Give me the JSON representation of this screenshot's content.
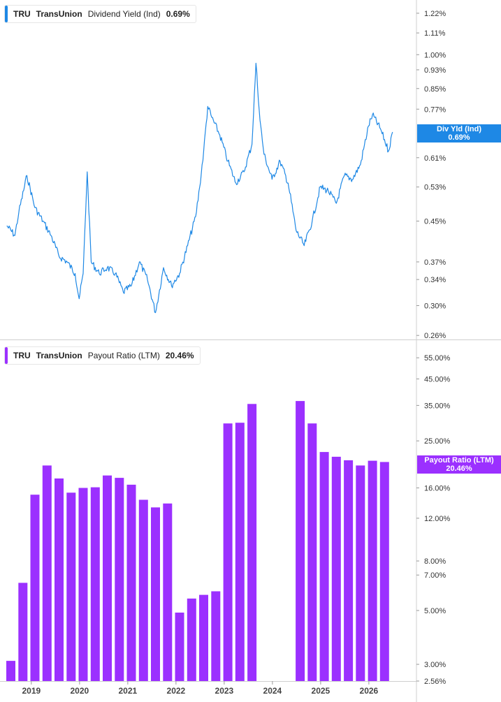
{
  "panel_top": {
    "legend": {
      "ticker": "TRU",
      "company": "TransUnion",
      "metric": "Dividend Yield (Ind)",
      "value": "0.69%"
    },
    "flag": {
      "label": "Div Yld (Ind)",
      "value": "0.69%"
    },
    "color": "#1e88e5"
  },
  "panel_bottom": {
    "legend": {
      "ticker": "TRU",
      "company": "TransUnion",
      "metric": "Payout Ratio (LTM)",
      "value": "20.46%"
    },
    "flag": {
      "label": "Payout Ratio (LTM)",
      "value": "20.46%"
    },
    "color": "#9b30ff"
  },
  "x_axis": {
    "labels": [
      "2019",
      "2020",
      "2021",
      "2022",
      "2023",
      "2024",
      "2025",
      "2026"
    ]
  },
  "chart_data": [
    {
      "type": "line",
      "series": [
        {
          "name": "Dividend Yield (Ind)",
          "unit": "%"
        }
      ],
      "yscale": "log",
      "ylim": [
        0.26,
        1.3
      ],
      "yticks": [
        "1.22%",
        "1.11%",
        "1.00%",
        "0.93%",
        "0.85%",
        "0.77%",
        "0.61%",
        "0.53%",
        "0.45%",
        "0.37%",
        "0.34%",
        "0.30%",
        "0.26%"
      ],
      "x": [
        "2018-07",
        "2018-09",
        "2018-10",
        "2018-12",
        "2019-02",
        "2019-04",
        "2019-06",
        "2019-08",
        "2019-10",
        "2019-12",
        "2020-01",
        "2020-02",
        "2020-03",
        "2020-04",
        "2020-06",
        "2020-08",
        "2020-10",
        "2020-12",
        "2021-02",
        "2021-04",
        "2021-06",
        "2021-08",
        "2021-10",
        "2021-12",
        "2022-02",
        "2022-04",
        "2022-06",
        "2022-07",
        "2022-08",
        "2022-09",
        "2022-10",
        "2022-12",
        "2023-02",
        "2023-04",
        "2023-06",
        "2023-08",
        "2023-09",
        "2023-10",
        "2023-11",
        "2024-01",
        "2024-03",
        "2024-05",
        "2024-07",
        "2024-09",
        "2024-11",
        "2025-01",
        "2025-03",
        "2025-05",
        "2025-07",
        "2025-09",
        "2025-11",
        "2026-01",
        "2026-02",
        "2026-04",
        "2026-06",
        "2026-07"
      ],
      "values": [
        0.44,
        0.42,
        0.47,
        0.56,
        0.48,
        0.45,
        0.42,
        0.38,
        0.37,
        0.35,
        0.31,
        0.35,
        0.57,
        0.37,
        0.35,
        0.36,
        0.35,
        0.32,
        0.33,
        0.37,
        0.34,
        0.29,
        0.36,
        0.33,
        0.35,
        0.4,
        0.46,
        0.53,
        0.63,
        0.78,
        0.74,
        0.68,
        0.6,
        0.54,
        0.57,
        0.65,
        0.96,
        0.73,
        0.62,
        0.55,
        0.6,
        0.54,
        0.43,
        0.4,
        0.45,
        0.53,
        0.52,
        0.49,
        0.56,
        0.55,
        0.59,
        0.71,
        0.75,
        0.7,
        0.63,
        0.69
      ]
    },
    {
      "type": "bar",
      "series": [
        {
          "name": "Payout Ratio (LTM)",
          "unit": "%"
        }
      ],
      "yscale": "log",
      "ylim": [
        2.56,
        65
      ],
      "yticks": [
        "55.00%",
        "45.00%",
        "35.00%",
        "25.00%",
        "16.00%",
        "12.00%",
        "8.00%",
        "7.00%",
        "5.00%",
        "3.00%",
        "2.56%"
      ],
      "categories": [
        "2018-Q3",
        "2018-Q4",
        "2019-Q1",
        "2019-Q2",
        "2019-Q3",
        "2019-Q4",
        "2020-Q1",
        "2020-Q2",
        "2020-Q3",
        "2020-Q4",
        "2021-Q1",
        "2021-Q2",
        "2021-Q3",
        "2021-Q4",
        "2022-Q1",
        "2022-Q2",
        "2022-Q3",
        "2022-Q4",
        "2023-Q1",
        "2023-Q2",
        "2023-Q3",
        "2023-Q4",
        "2024-Q1",
        "2024-Q2",
        "2024-Q3",
        "2024-Q4",
        "2025-Q1",
        "2025-Q2",
        "2025-Q3",
        "2025-Q4",
        "2026-Q1",
        "2026-Q2"
      ],
      "values": [
        3.1,
        6.5,
        15.0,
        19.8,
        17.5,
        15.3,
        16.0,
        16.1,
        18.0,
        17.6,
        16.5,
        14.3,
        13.3,
        13.8,
        4.9,
        5.6,
        5.8,
        6.0,
        29.5,
        29.7,
        35.5,
        null,
        null,
        null,
        36.5,
        29.5,
        22.5,
        21.5,
        20.8,
        19.8,
        20.7,
        20.46
      ]
    }
  ]
}
